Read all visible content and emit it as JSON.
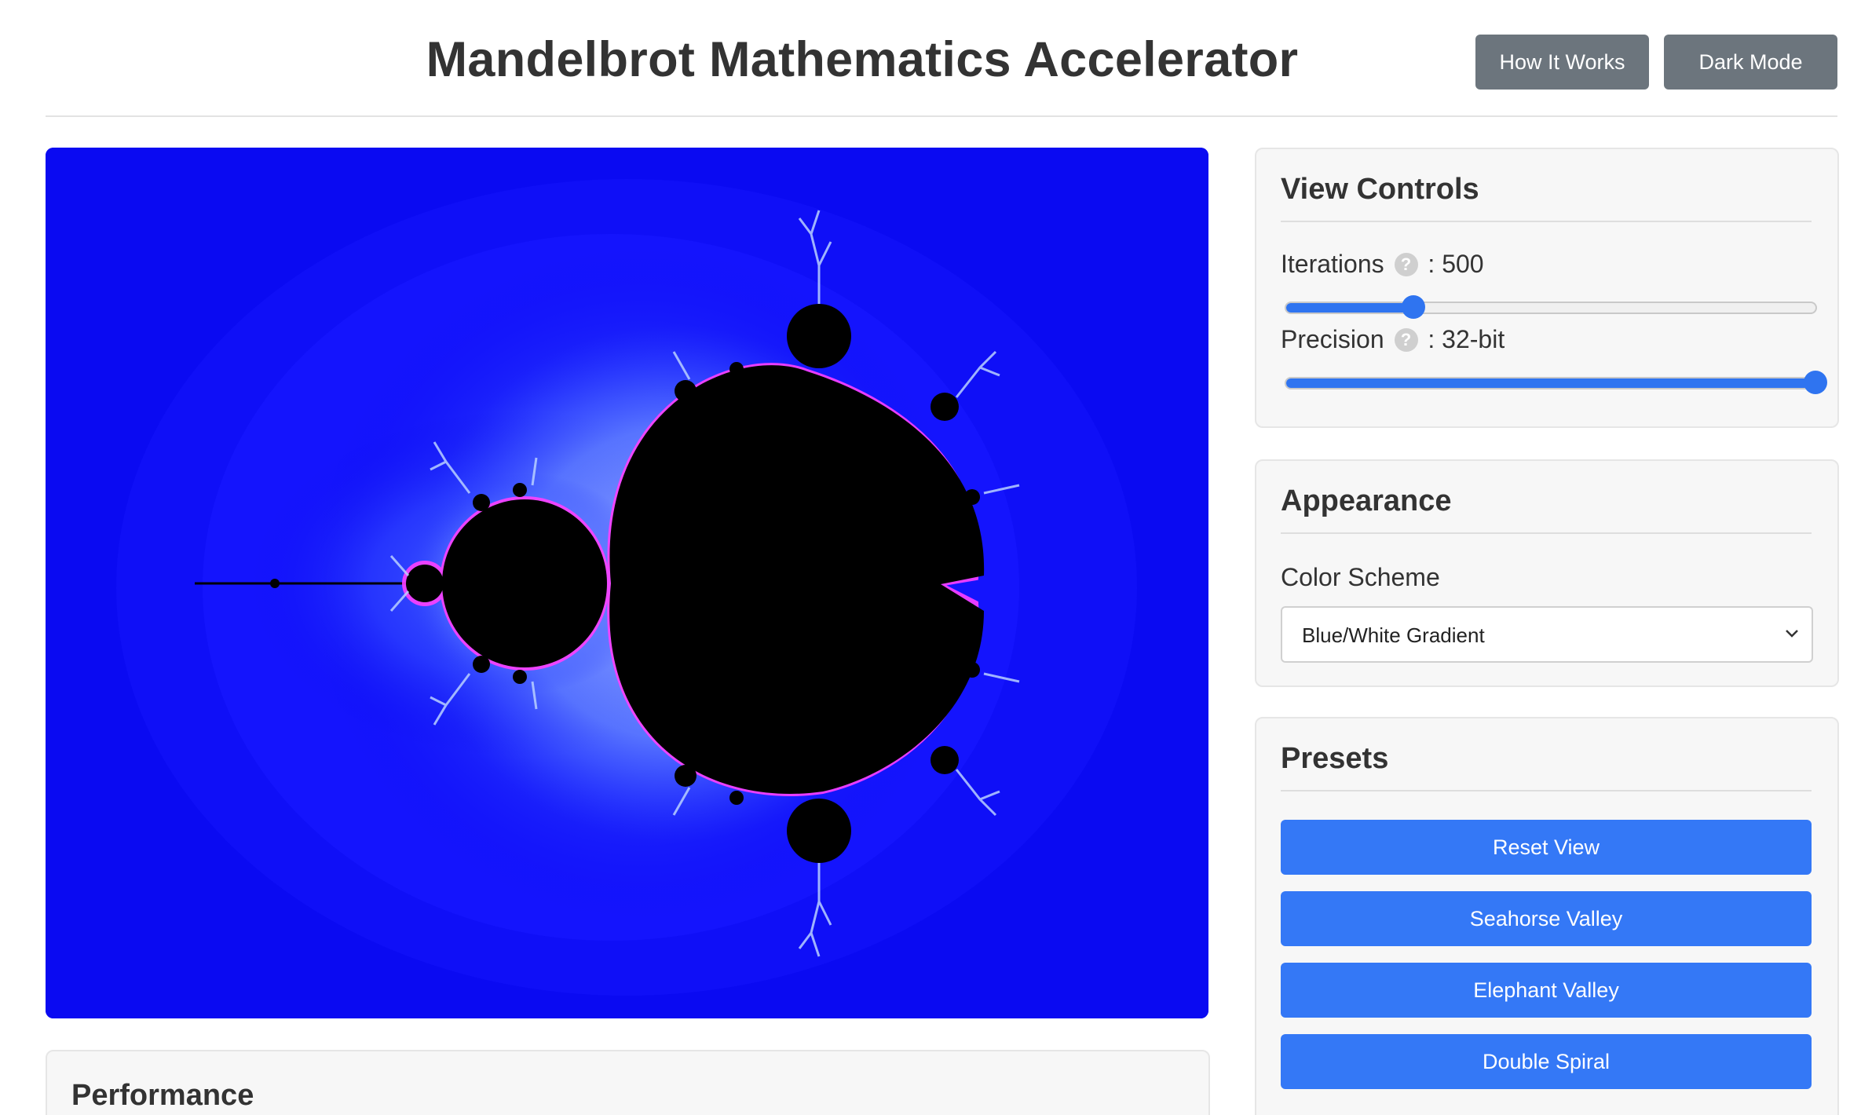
{
  "header": {
    "title": "Mandelbrot Mathematics Accelerator",
    "how_it_works_label": "How It Works",
    "dark_mode_label": "Dark Mode"
  },
  "fractal": {
    "background_color": "#0a0af2",
    "set_color": "#000000",
    "edge_glow_color": "#ff40ff"
  },
  "performance": {
    "title": "Performance"
  },
  "view_controls": {
    "title": "View Controls",
    "iterations": {
      "label": "Iterations",
      "value_text": ": 500",
      "fraction": 0.24
    },
    "precision": {
      "label": "Precision",
      "value_text": ": 32-bit",
      "fraction": 1.0
    },
    "help_glyph": "?"
  },
  "appearance": {
    "title": "Appearance",
    "color_scheme_label": "Color Scheme",
    "color_scheme_value": "Blue/White Gradient"
  },
  "presets": {
    "title": "Presets",
    "buttons": [
      "Reset View",
      "Seahorse Valley",
      "Elephant Valley",
      "Double Spiral"
    ]
  },
  "colors": {
    "accent": "#3478f6",
    "header_button": "#6c757d",
    "panel_background": "#f7f7f7"
  }
}
